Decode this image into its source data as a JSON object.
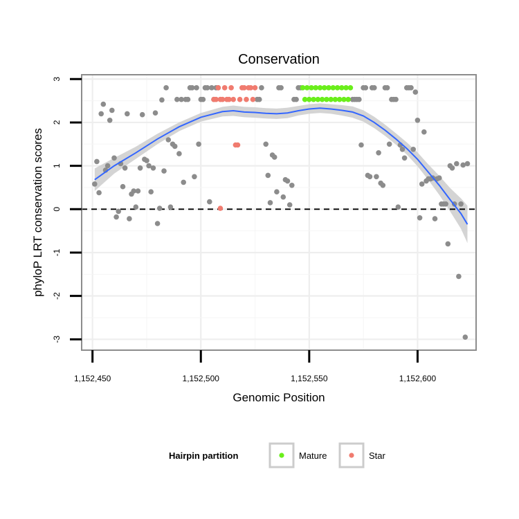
{
  "chart_data": {
    "type": "scatter",
    "title": "Conservation",
    "xlabel": "Genomic Position",
    "ylabel": "phyloP LRT conservation scores",
    "xlim": [
      1152445,
      1152627
    ],
    "ylim": [
      -3.25,
      3.1
    ],
    "x_ticks": [
      1152450,
      1152500,
      1152550,
      1152600
    ],
    "x_tick_labels": [
      "1,152,450",
      "1,152,500",
      "1,152,550",
      "1,152,600"
    ],
    "y_ticks": [
      -3,
      -2,
      -1,
      0,
      1,
      2,
      3
    ],
    "y_tick_labels": [
      "-3",
      "-2",
      "-1",
      "0",
      "1",
      "2",
      "3"
    ],
    "grid": true,
    "reference_line": {
      "y": 0,
      "style": "dashed",
      "color": "#000000"
    },
    "colors": {
      "Other": "#8c8c8c",
      "Mature": "#6aee1b",
      "Star": "#f07b6f",
      "smooth": "#3366ff",
      "ribbon": "#cccccc",
      "panel_border": "#8c8c8c",
      "grid": "#eeeeee"
    },
    "legend": {
      "title": "Hairpin partition",
      "position": "bottom",
      "entries": [
        {
          "label": "Mature",
          "color": "#6aee1b"
        },
        {
          "label": "Star",
          "color": "#f07b6f"
        }
      ]
    },
    "series": [
      {
        "group": "Other",
        "points": [
          [
            1152451,
            0.58
          ],
          [
            1152452,
            1.1
          ],
          [
            1152453,
            0.38
          ],
          [
            1152454,
            2.2
          ],
          [
            1152455,
            2.42
          ],
          [
            1152456,
            0.9
          ],
          [
            1152457,
            1.0
          ],
          [
            1152458,
            2.05
          ],
          [
            1152459,
            2.28
          ],
          [
            1152460,
            1.18
          ],
          [
            1152461,
            -0.18
          ],
          [
            1152462,
            -0.05
          ],
          [
            1152463,
            1.05
          ],
          [
            1152464,
            0.52
          ],
          [
            1152465,
            0.95
          ],
          [
            1152466,
            2.2
          ],
          [
            1152467,
            -0.22
          ],
          [
            1152468,
            0.35
          ],
          [
            1152469,
            0.42
          ],
          [
            1152470,
            0.05
          ],
          [
            1152471,
            0.42
          ],
          [
            1152472,
            0.95
          ],
          [
            1152473,
            2.18
          ],
          [
            1152474,
            1.15
          ],
          [
            1152475,
            1.12
          ],
          [
            1152476,
            1.0
          ],
          [
            1152477,
            0.4
          ],
          [
            1152478,
            0.95
          ],
          [
            1152479,
            2.22
          ],
          [
            1152480,
            -0.33
          ],
          [
            1152481,
            0.02
          ],
          [
            1152482,
            2.52
          ],
          [
            1152483,
            0.88
          ],
          [
            1152484,
            2.8
          ],
          [
            1152485,
            1.6
          ],
          [
            1152486,
            0.05
          ],
          [
            1152487,
            1.5
          ],
          [
            1152488,
            1.45
          ],
          [
            1152489,
            2.53
          ],
          [
            1152490,
            1.28
          ],
          [
            1152491,
            2.53
          ],
          [
            1152492,
            0.62
          ],
          [
            1152493,
            2.53
          ],
          [
            1152494,
            2.53
          ],
          [
            1152495,
            2.8
          ],
          [
            1152496,
            2.8
          ],
          [
            1152497,
            0.75
          ],
          [
            1152498,
            2.8
          ],
          [
            1152499,
            1.5
          ],
          [
            1152500,
            2.53
          ],
          [
            1152501,
            2.53
          ],
          [
            1152502,
            2.8
          ],
          [
            1152503,
            2.8
          ],
          [
            1152504,
            0.17
          ],
          [
            1152505,
            2.8
          ],
          [
            1152506,
            2.53
          ],
          [
            1152507,
            2.8
          ],
          [
            1152508,
            2.8
          ],
          [
            1152526,
            2.53
          ],
          [
            1152527,
            2.53
          ],
          [
            1152528,
            2.8
          ],
          [
            1152530,
            1.5
          ],
          [
            1152531,
            0.78
          ],
          [
            1152532,
            0.15
          ],
          [
            1152533,
            1.25
          ],
          [
            1152534,
            1.2
          ],
          [
            1152535,
            0.4
          ],
          [
            1152536,
            2.8
          ],
          [
            1152537,
            2.8
          ],
          [
            1152538,
            0.28
          ],
          [
            1152539,
            0.68
          ],
          [
            1152540,
            0.65
          ],
          [
            1152541,
            0.1
          ],
          [
            1152542,
            0.55
          ],
          [
            1152543,
            2.53
          ],
          [
            1152544,
            2.53
          ],
          [
            1152545,
            2.8
          ],
          [
            1152546,
            2.8
          ],
          [
            1152570,
            2.53
          ],
          [
            1152571,
            2.53
          ],
          [
            1152572,
            2.53
          ],
          [
            1152573,
            2.53
          ],
          [
            1152574,
            1.48
          ],
          [
            1152575,
            2.8
          ],
          [
            1152576,
            2.8
          ],
          [
            1152577,
            0.78
          ],
          [
            1152578,
            0.75
          ],
          [
            1152579,
            2.8
          ],
          [
            1152580,
            2.8
          ],
          [
            1152581,
            0.75
          ],
          [
            1152582,
            1.3
          ],
          [
            1152583,
            0.6
          ],
          [
            1152584,
            0.55
          ],
          [
            1152585,
            2.8
          ],
          [
            1152586,
            2.8
          ],
          [
            1152587,
            1.5
          ],
          [
            1152588,
            2.53
          ],
          [
            1152589,
            2.53
          ],
          [
            1152590,
            2.53
          ],
          [
            1152591,
            0.05
          ],
          [
            1152592,
            1.48
          ],
          [
            1152593,
            1.38
          ],
          [
            1152594,
            1.18
          ],
          [
            1152595,
            2.8
          ],
          [
            1152596,
            2.8
          ],
          [
            1152597,
            2.8
          ],
          [
            1152598,
            1.38
          ],
          [
            1152599,
            2.7
          ],
          [
            1152600,
            2.05
          ],
          [
            1152601,
            -0.2
          ],
          [
            1152602,
            0.58
          ],
          [
            1152603,
            1.78
          ],
          [
            1152604,
            0.65
          ],
          [
            1152605,
            0.7
          ],
          [
            1152606,
            0.7
          ],
          [
            1152607,
            0.72
          ],
          [
            1152608,
            -0.22
          ],
          [
            1152609,
            0.7
          ],
          [
            1152610,
            0.72
          ],
          [
            1152611,
            0.12
          ],
          [
            1152612,
            0.12
          ],
          [
            1152613,
            0.12
          ],
          [
            1152614,
            -0.8
          ],
          [
            1152615,
            1.0
          ],
          [
            1152616,
            0.95
          ],
          [
            1152617,
            0.12
          ],
          [
            1152618,
            1.05
          ],
          [
            1152619,
            -1.55
          ],
          [
            1152620,
            0.12
          ],
          [
            1152621,
            1.02
          ],
          [
            1152622,
            -2.95
          ],
          [
            1152623,
            1.05
          ]
        ]
      },
      {
        "group": "Star",
        "points": [
          [
            1152509,
            0.02
          ],
          [
            1152506,
            2.53
          ],
          [
            1152507,
            2.53
          ],
          [
            1152508,
            2.8
          ],
          [
            1152509,
            2.53
          ],
          [
            1152510,
            2.53
          ],
          [
            1152511,
            2.8
          ],
          [
            1152512,
            2.53
          ],
          [
            1152513,
            2.53
          ],
          [
            1152514,
            2.8
          ],
          [
            1152515,
            2.53
          ],
          [
            1152516,
            1.48
          ],
          [
            1152517,
            1.48
          ],
          [
            1152518,
            2.53
          ],
          [
            1152519,
            2.8
          ],
          [
            1152520,
            2.8
          ],
          [
            1152521,
            2.53
          ],
          [
            1152522,
            2.8
          ],
          [
            1152523,
            2.8
          ],
          [
            1152524,
            2.53
          ],
          [
            1152525,
            2.8
          ]
        ]
      },
      {
        "group": "Mature",
        "points": [
          [
            1152547,
            2.8
          ],
          [
            1152548,
            2.53
          ],
          [
            1152549,
            2.8
          ],
          [
            1152550,
            2.53
          ],
          [
            1152551,
            2.8
          ],
          [
            1152552,
            2.53
          ],
          [
            1152553,
            2.8
          ],
          [
            1152554,
            2.53
          ],
          [
            1152555,
            2.8
          ],
          [
            1152556,
            2.53
          ],
          [
            1152557,
            2.8
          ],
          [
            1152558,
            2.53
          ],
          [
            1152559,
            2.8
          ],
          [
            1152560,
            2.53
          ],
          [
            1152561,
            2.8
          ],
          [
            1152562,
            2.53
          ],
          [
            1152563,
            2.8
          ],
          [
            1152564,
            2.53
          ],
          [
            1152565,
            2.8
          ],
          [
            1152566,
            2.53
          ],
          [
            1152567,
            2.8
          ],
          [
            1152568,
            2.53
          ],
          [
            1152569,
            2.8
          ]
        ]
      }
    ],
    "smooth": {
      "x": [
        1152451,
        1152460,
        1152470,
        1152480,
        1152490,
        1152500,
        1152510,
        1152515,
        1152520,
        1152525,
        1152530,
        1152535,
        1152540,
        1152545,
        1152550,
        1152555,
        1152560,
        1152565,
        1152570,
        1152575,
        1152580,
        1152585,
        1152590,
        1152595,
        1152600,
        1152605,
        1152610,
        1152615,
        1152620,
        1152623
      ],
      "y": [
        0.68,
        1.0,
        1.3,
        1.62,
        1.9,
        2.12,
        2.25,
        2.27,
        2.24,
        2.23,
        2.21,
        2.2,
        2.22,
        2.27,
        2.31,
        2.33,
        2.31,
        2.28,
        2.24,
        2.15,
        2.0,
        1.82,
        1.62,
        1.4,
        1.15,
        0.85,
        0.55,
        0.22,
        -0.1,
        -0.35
      ],
      "lower": [
        0.42,
        0.82,
        1.16,
        1.5,
        1.8,
        2.02,
        2.14,
        2.15,
        2.12,
        2.11,
        2.09,
        2.08,
        2.1,
        2.16,
        2.2,
        2.22,
        2.2,
        2.16,
        2.11,
        2.02,
        1.87,
        1.69,
        1.49,
        1.26,
        0.99,
        0.67,
        0.33,
        -0.05,
        -0.45,
        -0.78
      ],
      "upper": [
        0.94,
        1.18,
        1.44,
        1.74,
        2.0,
        2.22,
        2.36,
        2.39,
        2.36,
        2.35,
        2.33,
        2.32,
        2.34,
        2.38,
        2.42,
        2.44,
        2.42,
        2.4,
        2.37,
        2.28,
        2.13,
        1.95,
        1.75,
        1.54,
        1.31,
        1.03,
        0.77,
        0.49,
        0.25,
        0.08
      ]
    }
  }
}
